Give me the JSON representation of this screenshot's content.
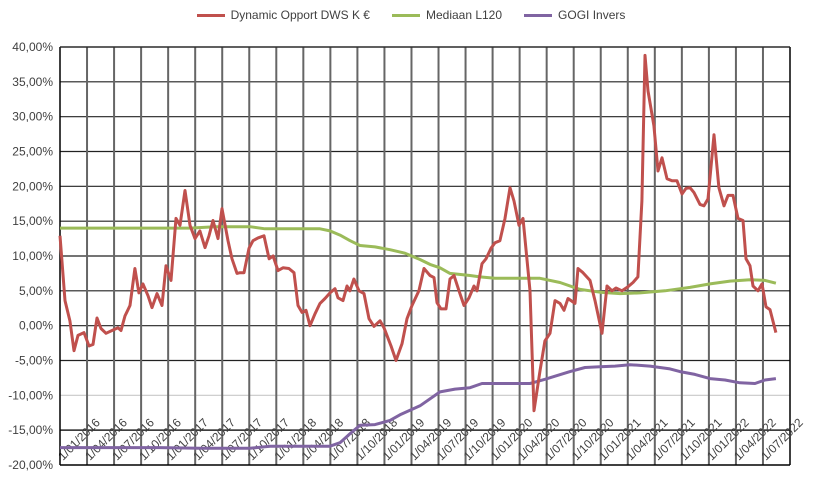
{
  "chart_data": {
    "type": "line",
    "title": "",
    "xlabel": "",
    "ylabel": "",
    "x_unit": "years since 1/01/2016",
    "xlim": [
      0,
      6.75
    ],
    "ylim": [
      -20,
      40
    ],
    "y_ticks": [
      -20,
      -15,
      -10,
      -5,
      0,
      5,
      10,
      15,
      20,
      25,
      30,
      35,
      40
    ],
    "y_tick_labels": [
      "-20,00%",
      "-15,00%",
      "-10,00%",
      "-5,00%",
      "0,00%",
      "5,00%",
      "10,00%",
      "15,00%",
      "20,00%",
      "25,00%",
      "30,00%",
      "35,00%",
      "40,00%"
    ],
    "x_tick_labels": [
      "1/01/2016",
      "1/04/2016",
      "1/07/2016",
      "1/10/2016",
      "1/01/2017",
      "1/04/2017",
      "1/07/2017",
      "1/10/2017",
      "1/01/2018",
      "1/04/2018",
      "1/07/2018",
      "1/10/2018",
      "1/01/2019",
      "1/04/2019",
      "1/07/2019",
      "1/10/2019",
      "1/01/2020",
      "1/04/2020",
      "1/07/2020",
      "1/10/2020",
      "1/01/2021",
      "1/04/2021",
      "1/07/2021",
      "1/10/2021",
      "1/01/2022",
      "1/04/2022",
      "1/07/2022"
    ],
    "x_axis_crosses_at": -15,
    "grid": true,
    "legend_position": "top",
    "series": [
      {
        "name": "Dynamic Opport DWS K €",
        "color": "#c0504d",
        "x": [
          0,
          0.046,
          0.092,
          0.129,
          0.166,
          0.222,
          0.268,
          0.305,
          0.342,
          0.379,
          0.425,
          0.481,
          0.536,
          0.564,
          0.601,
          0.647,
          0.693,
          0.73,
          0.767,
          0.814,
          0.851,
          0.897,
          0.943,
          0.98,
          1.026,
          1.073,
          1.11,
          1.156,
          1.202,
          1.248,
          1.294,
          1.341,
          1.378,
          1.415,
          1.461,
          1.498,
          1.553,
          1.59,
          1.637,
          1.664,
          1.701,
          1.748,
          1.785,
          1.831,
          1.886,
          1.933,
          1.97,
          2.016,
          2.062,
          2.117,
          2.164,
          2.201,
          2.238,
          2.275,
          2.312,
          2.358,
          2.404,
          2.45,
          2.497,
          2.543,
          2.571,
          2.617,
          2.654,
          2.681,
          2.718,
          2.765,
          2.811,
          2.857,
          2.903,
          2.959,
          2.996,
          3.061,
          3.107,
          3.162,
          3.209,
          3.255,
          3.319,
          3.366,
          3.421,
          3.458,
          3.486,
          3.523,
          3.569,
          3.606,
          3.643,
          3.689,
          3.736,
          3.782,
          3.828,
          3.856,
          3.902,
          3.939,
          3.985,
          4.022,
          4.068,
          4.115,
          4.161,
          4.198,
          4.244,
          4.281,
          4.346,
          4.383,
          4.438,
          4.484,
          4.531,
          4.577,
          4.623,
          4.66,
          4.697,
          4.762,
          4.79,
          4.836,
          4.901,
          4.947,
          5.012,
          5.058,
          5.104,
          5.141,
          5.197,
          5.252,
          5.298,
          5.344,
          5.381,
          5.409,
          5.437,
          5.492,
          5.529,
          5.566,
          5.613,
          5.659,
          5.705,
          5.751,
          5.788,
          5.825,
          5.862,
          5.918,
          5.955,
          5.992,
          6.047,
          6.093,
          6.14,
          6.177,
          6.223,
          6.269,
          6.315,
          6.343,
          6.38,
          6.408,
          6.454,
          6.491,
          6.528,
          6.565,
          6.62
        ],
        "y": [
          12.9,
          3.6,
          0.7,
          -3.6,
          -1.4,
          -1.0,
          -2.9,
          -2.7,
          1.1,
          -0.4,
          -1.1,
          -0.7,
          -0.3,
          -0.7,
          1.4,
          2.9,
          8.2,
          4.7,
          6.0,
          4.3,
          2.6,
          4.6,
          2.9,
          8.6,
          6.5,
          15.4,
          14.4,
          19.4,
          14.4,
          12.5,
          13.6,
          11.2,
          12.9,
          15.1,
          12.5,
          16.8,
          12.2,
          9.6,
          7.5,
          7.6,
          7.6,
          11.1,
          12.2,
          12.6,
          12.9,
          9.6,
          10.0,
          7.9,
          8.3,
          8.2,
          7.6,
          2.9,
          1.9,
          2.2,
          0,
          1.7,
          3.2,
          3.9,
          4.7,
          5.3,
          4.0,
          3.6,
          5.7,
          5.0,
          6.7,
          5.0,
          4.6,
          1.0,
          -0.1,
          0.7,
          -0.3,
          -2.9,
          -5.0,
          -2.6,
          1.0,
          2.9,
          5.0,
          8.2,
          7.2,
          6.9,
          3.3,
          2.4,
          2.4,
          6.7,
          7.2,
          5.0,
          2.9,
          4.0,
          5.7,
          5.0,
          8.9,
          9.6,
          11.1,
          11.9,
          12.2,
          15.4,
          19.8,
          17.9,
          14.4,
          15.4,
          5.0,
          -12.2,
          -6.5,
          -2.2,
          -1.1,
          3.6,
          3.2,
          2.2,
          3.9,
          3.2,
          8.2,
          7.6,
          6.5,
          3.6,
          -1.1,
          5.7,
          5.0,
          5.4,
          5.0,
          5.6,
          6.2,
          7.0,
          17.9,
          38.8,
          33.7,
          28.7,
          22.2,
          24.1,
          21.1,
          20.8,
          20.8,
          18.9,
          19.7,
          19.8,
          19.1,
          17.4,
          17.2,
          18.2,
          27.4,
          19.8,
          17.2,
          18.7,
          18.7,
          15.4,
          15.1,
          9.6,
          8.6,
          5.7,
          5.0,
          6.0,
          2.7,
          2.3,
          -1.0
        ]
      },
      {
        "name": "Mediaan L120",
        "color": "#9bbb59",
        "x": [
          0,
          1.202,
          1.433,
          1.757,
          1.896,
          2.404,
          2.497,
          2.589,
          2.682,
          2.774,
          2.913,
          3.051,
          3.19,
          3.329,
          3.421,
          3.514,
          3.606,
          3.791,
          3.884,
          4.022,
          4.438,
          4.623,
          4.808,
          4.993,
          5.178,
          5.363,
          5.594,
          5.825,
          6.01,
          6.195,
          6.38,
          6.519,
          6.62
        ],
        "y": [
          14,
          14,
          14.2,
          14.2,
          13.9,
          13.9,
          13.6,
          13.0,
          12.2,
          11.5,
          11.3,
          10.9,
          10.4,
          9.5,
          8.8,
          8.3,
          7.5,
          7.2,
          7.0,
          6.8,
          6.8,
          6.2,
          5.2,
          4.8,
          4.6,
          4.7,
          5.0,
          5.5,
          6.0,
          6.4,
          6.6,
          6.5,
          6.1
        ]
      },
      {
        "name": "GOGI Invers",
        "color": "#8064a2",
        "x": [
          0,
          0.925,
          1.294,
          1.757,
          1.942,
          2.497,
          2.589,
          2.682,
          2.774,
          2.913,
          3.051,
          3.144,
          3.329,
          3.514,
          3.652,
          3.791,
          3.902,
          4.346,
          4.484,
          4.716,
          4.854,
          4.993,
          5.132,
          5.27,
          5.455,
          5.64,
          5.733,
          5.871,
          6.01,
          6.149,
          6.287,
          6.426,
          6.519,
          6.62
        ],
        "y": [
          -17.5,
          -17.5,
          -17.6,
          -17.6,
          -17.3,
          -17.3,
          -16.8,
          -15.5,
          -14.3,
          -14.2,
          -13.6,
          -12.8,
          -11.5,
          -9.5,
          -9.1,
          -8.9,
          -8.3,
          -8.3,
          -7.7,
          -6.6,
          -6.0,
          -5.9,
          -5.8,
          -5.6,
          -5.8,
          -6.2,
          -6.6,
          -7.0,
          -7.6,
          -7.8,
          -8.2,
          -8.3,
          -7.8,
          -7.6
        ]
      }
    ]
  }
}
